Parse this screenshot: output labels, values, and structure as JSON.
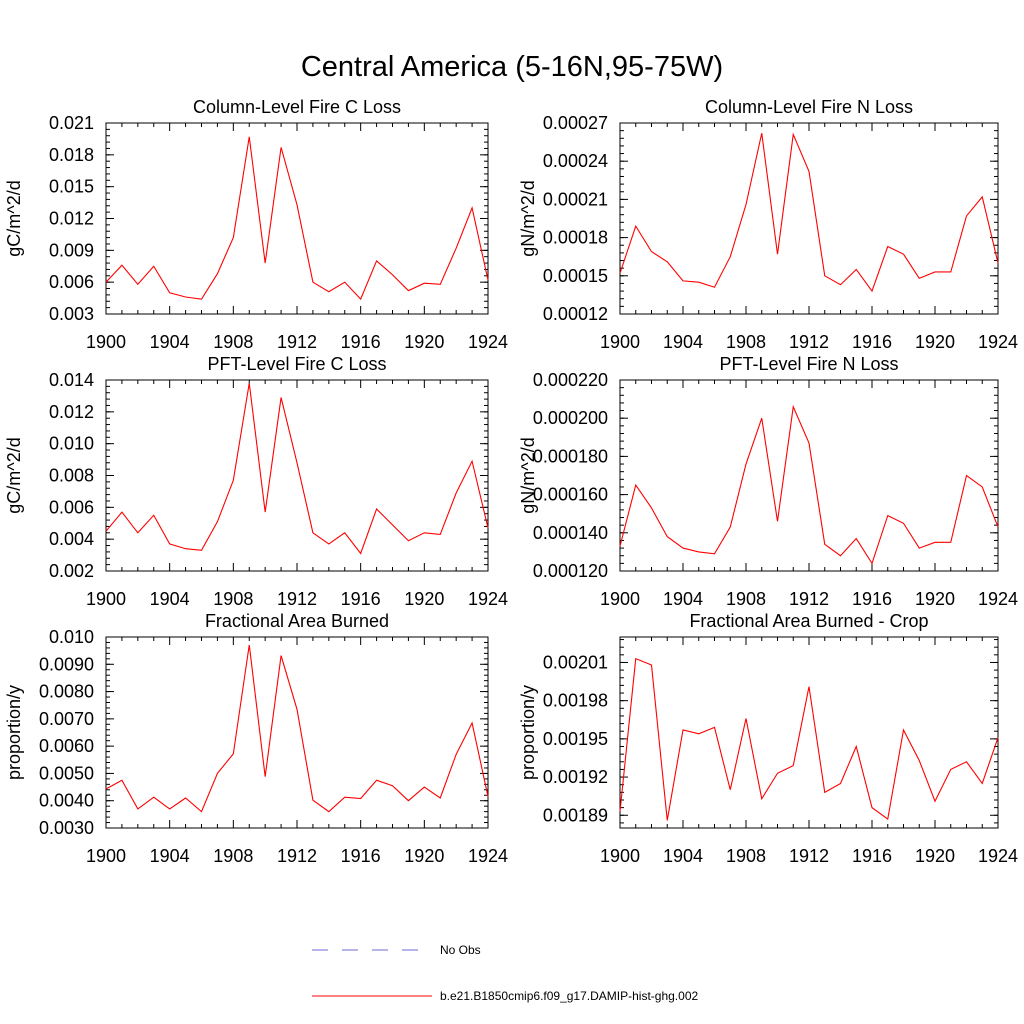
{
  "figure": {
    "title": "Central America (5-16N,95-75W)"
  },
  "legend": {
    "entries": [
      {
        "label": "No Obs",
        "color": "#6b6bd6",
        "style": "dashed"
      },
      {
        "label": "b.e21.B1850cmip6.f09_g17.DAMIP-hist-ghg.002",
        "color": "#ff0000",
        "style": "solid"
      }
    ]
  },
  "chart_data": [
    {
      "type": "line",
      "title": "Column-Level Fire C Loss",
      "ylabel": "gC/m^2/d",
      "xlim": [
        1900,
        1924
      ],
      "ylim": [
        0.003,
        0.021
      ],
      "xticks": [
        1900,
        1904,
        1908,
        1912,
        1916,
        1920,
        1924
      ],
      "xtick_labels": [
        "1900",
        "1904",
        "1908",
        "1912",
        "1916",
        "1920",
        "1924"
      ],
      "yticks": [
        0.003,
        0.006,
        0.009,
        0.012,
        0.015,
        0.018,
        0.021
      ],
      "ytick_labels": [
        "0.003",
        "0.006",
        "0.009",
        "0.012",
        "0.015",
        "0.018",
        "0.021"
      ],
      "x": [
        1900,
        1901,
        1902,
        1903,
        1904,
        1905,
        1906,
        1907,
        1908,
        1909,
        1910,
        1911,
        1912,
        1913,
        1914,
        1915,
        1916,
        1917,
        1918,
        1919,
        1920,
        1921,
        1922,
        1923,
        1924
      ],
      "series": [
        {
          "values": [
            0.006,
            0.0076,
            0.0058,
            0.0075,
            0.005,
            0.0046,
            0.0044,
            0.0068,
            0.0102,
            0.0197,
            0.0078,
            0.0187,
            0.0133,
            0.006,
            0.0051,
            0.006,
            0.0044,
            0.008,
            0.0067,
            0.0052,
            0.0059,
            0.0058,
            0.0092,
            0.013,
            0.0062
          ],
          "color": "#ff0000"
        }
      ]
    },
    {
      "type": "line",
      "title": "Column-Level Fire N Loss",
      "ylabel": "gN/m^2/d",
      "xlim": [
        1900,
        1924
      ],
      "ylim": [
        0.00012,
        0.00027
      ],
      "xticks": [
        1900,
        1904,
        1908,
        1912,
        1916,
        1920,
        1924
      ],
      "xtick_labels": [
        "1900",
        "1904",
        "1908",
        "1912",
        "1916",
        "1920",
        "1924"
      ],
      "yticks": [
        0.00012,
        0.00015,
        0.00018,
        0.00021,
        0.00024,
        0.00027
      ],
      "ytick_labels": [
        "0.00012",
        "0.00015",
        "0.00018",
        "0.00021",
        "0.00024",
        "0.00027"
      ],
      "x": [
        1900,
        1901,
        1902,
        1903,
        1904,
        1905,
        1906,
        1907,
        1908,
        1909,
        1910,
        1911,
        1912,
        1913,
        1914,
        1915,
        1916,
        1917,
        1918,
        1919,
        1920,
        1921,
        1922,
        1923,
        1924
      ],
      "series": [
        {
          "values": [
            0.000152,
            0.000189,
            0.000169,
            0.000161,
            0.000146,
            0.000145,
            0.000141,
            0.000165,
            0.000206,
            0.000262,
            0.000167,
            0.000261,
            0.000232,
            0.00015,
            0.000143,
            0.000155,
            0.000138,
            0.000173,
            0.000167,
            0.000148,
            0.000153,
            0.000153,
            0.000197,
            0.000212,
            0.00016
          ],
          "color": "#ff0000"
        }
      ]
    },
    {
      "type": "line",
      "title": "PFT-Level Fire C Loss",
      "ylabel": "gC/m^2/d",
      "xlim": [
        1900,
        1924
      ],
      "ylim": [
        0.002,
        0.014
      ],
      "xticks": [
        1900,
        1904,
        1908,
        1912,
        1916,
        1920,
        1924
      ],
      "xtick_labels": [
        "1900",
        "1904",
        "1908",
        "1912",
        "1916",
        "1920",
        "1924"
      ],
      "yticks": [
        0.002,
        0.004,
        0.006,
        0.008,
        0.01,
        0.012,
        0.014
      ],
      "ytick_labels": [
        "0.002",
        "0.004",
        "0.006",
        "0.008",
        "0.010",
        "0.012",
        "0.014"
      ],
      "x": [
        1900,
        1901,
        1902,
        1903,
        1904,
        1905,
        1906,
        1907,
        1908,
        1909,
        1910,
        1911,
        1912,
        1913,
        1914,
        1915,
        1916,
        1917,
        1918,
        1919,
        1920,
        1921,
        1922,
        1923,
        1924
      ],
      "series": [
        {
          "values": [
            0.0045,
            0.0057,
            0.0044,
            0.0055,
            0.0037,
            0.0034,
            0.0033,
            0.0051,
            0.0077,
            0.0138,
            0.0057,
            0.0129,
            0.0088,
            0.0044,
            0.0037,
            0.0044,
            0.0031,
            0.0059,
            0.0049,
            0.0039,
            0.0044,
            0.0043,
            0.0069,
            0.0089,
            0.0047
          ],
          "color": "#ff0000"
        }
      ]
    },
    {
      "type": "line",
      "title": "PFT-Level Fire N Loss",
      "ylabel": "gN/m^2/d",
      "xlim": [
        1900,
        1924
      ],
      "ylim": [
        0.00012,
        0.00022
      ],
      "xticks": [
        1900,
        1904,
        1908,
        1912,
        1916,
        1920,
        1924
      ],
      "xtick_labels": [
        "1900",
        "1904",
        "1908",
        "1912",
        "1916",
        "1920",
        "1924"
      ],
      "yticks": [
        0.00012,
        0.00014,
        0.00016,
        0.00018,
        0.0002,
        0.00022
      ],
      "ytick_labels": [
        "0.000120",
        "0.000140",
        "0.000160",
        "0.000180",
        "0.000200",
        "0.000220"
      ],
      "x": [
        1900,
        1901,
        1902,
        1903,
        1904,
        1905,
        1906,
        1907,
        1908,
        1909,
        1910,
        1911,
        1912,
        1913,
        1914,
        1915,
        1916,
        1917,
        1918,
        1919,
        1920,
        1921,
        1922,
        1923,
        1924
      ],
      "series": [
        {
          "values": [
            0.000133,
            0.000165,
            0.000153,
            0.000138,
            0.000132,
            0.00013,
            0.000129,
            0.000143,
            0.000176,
            0.0002,
            0.000146,
            0.000206,
            0.000187,
            0.000134,
            0.000128,
            0.000137,
            0.000124,
            0.000149,
            0.000145,
            0.000132,
            0.000135,
            0.000135,
            0.00017,
            0.000164,
            0.000143
          ],
          "color": "#ff0000"
        }
      ]
    },
    {
      "type": "line",
      "title": "Fractional Area Burned",
      "ylabel": "proportion/y",
      "xlim": [
        1900,
        1924
      ],
      "ylim": [
        0.003,
        0.01
      ],
      "xticks": [
        1900,
        1904,
        1908,
        1912,
        1916,
        1920,
        1924
      ],
      "xtick_labels": [
        "1900",
        "1904",
        "1908",
        "1912",
        "1916",
        "1920",
        "1924"
      ],
      "yticks": [
        0.003,
        0.004,
        0.005,
        0.006,
        0.007,
        0.008,
        0.009,
        0.01
      ],
      "ytick_labels": [
        "0.0030",
        "0.0040",
        "0.0050",
        "0.0060",
        "0.0070",
        "0.0080",
        "0.0090",
        "0.010"
      ],
      "x": [
        1900,
        1901,
        1902,
        1903,
        1904,
        1905,
        1906,
        1907,
        1908,
        1909,
        1910,
        1911,
        1912,
        1913,
        1914,
        1915,
        1916,
        1917,
        1918,
        1919,
        1920,
        1921,
        1922,
        1923,
        1924
      ],
      "series": [
        {
          "values": [
            0.00443,
            0.00475,
            0.0037,
            0.00413,
            0.0037,
            0.0041,
            0.0036,
            0.005,
            0.00572,
            0.00971,
            0.00488,
            0.00932,
            0.00735,
            0.00402,
            0.0036,
            0.00413,
            0.00408,
            0.00475,
            0.00455,
            0.004,
            0.0045,
            0.0041,
            0.0057,
            0.00685,
            0.00415
          ],
          "color": "#ff0000"
        }
      ]
    },
    {
      "type": "line",
      "title": "Fractional Area Burned - Crop",
      "ylabel": "proportion/y",
      "xlim": [
        1900,
        1924
      ],
      "ylim": [
        0.00188,
        0.00203
      ],
      "xticks": [
        1900,
        1904,
        1908,
        1912,
        1916,
        1920,
        1924
      ],
      "xtick_labels": [
        "1900",
        "1904",
        "1908",
        "1912",
        "1916",
        "1920",
        "1924"
      ],
      "yticks": [
        0.00189,
        0.00192,
        0.00195,
        0.00198,
        0.00201
      ],
      "ytick_labels": [
        "0.00189",
        "0.00192",
        "0.00195",
        "0.00198",
        "0.00201"
      ],
      "x": [
        1900,
        1901,
        1902,
        1903,
        1904,
        1905,
        1906,
        1907,
        1908,
        1909,
        1910,
        1911,
        1912,
        1913,
        1914,
        1915,
        1916,
        1917,
        1918,
        1919,
        1920,
        1921,
        1922,
        1923,
        1924
      ],
      "series": [
        {
          "values": [
            0.001893,
            0.002013,
            0.002008,
            0.001886,
            0.001957,
            0.001954,
            0.001959,
            0.00191,
            0.001966,
            0.001903,
            0.001923,
            0.001929,
            0.001991,
            0.001908,
            0.001915,
            0.001944,
            0.001896,
            0.001887,
            0.001957,
            0.001933,
            0.001901,
            0.001926,
            0.001932,
            0.001915,
            0.001951
          ],
          "color": "#ff0000"
        }
      ]
    }
  ]
}
